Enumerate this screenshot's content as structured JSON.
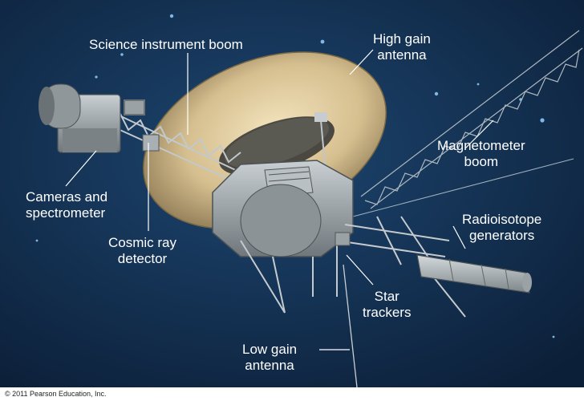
{
  "labels": {
    "science_boom": "Science instrument boom",
    "high_gain": {
      "line1": "High gain",
      "line2": "antenna"
    },
    "magnetometer": {
      "line1": "Magnetometer",
      "line2": "boom"
    },
    "cameras": {
      "line1": "Cameras and",
      "line2": "spectrometer"
    },
    "cosmic_ray": {
      "line1": "Cosmic ray",
      "line2": "detector"
    },
    "radioisotope": {
      "line1": "Radioisotope",
      "line2": "generators"
    },
    "star_trackers": {
      "line1": "Star",
      "line2": "trackers"
    },
    "low_gain": {
      "line1": "Low gain",
      "line2": "antenna"
    }
  },
  "copyright": "© 2011 Pearson Education, Inc.",
  "colors": {
    "space_top": "#0f2440",
    "space_bottom": "#173a60",
    "dish": "#d8c49a",
    "metal": "#a7aeb2",
    "label_text": "#ffffff"
  }
}
